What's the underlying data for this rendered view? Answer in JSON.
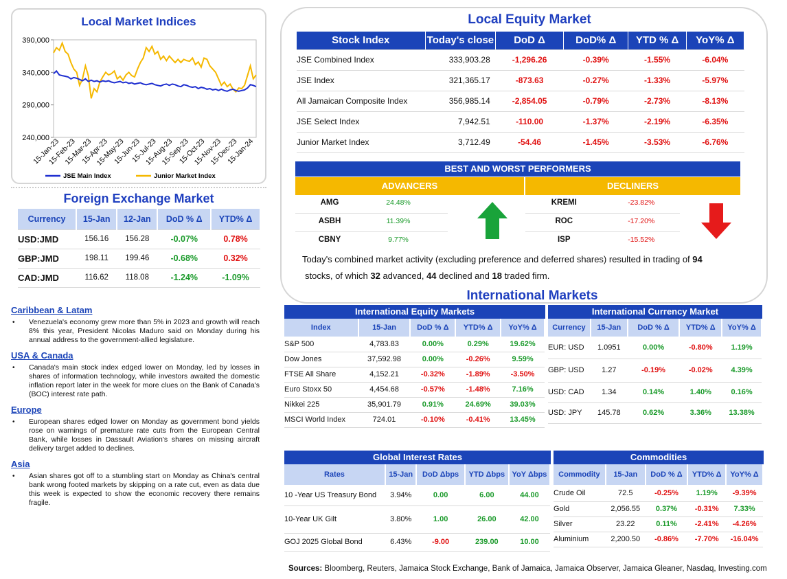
{
  "chart_title": "Local Market Indices",
  "chart_data": {
    "type": "line",
    "ylim": [
      240000,
      390000
    ],
    "yticks": [
      "390,000",
      "340,000",
      "290,000",
      "240,000"
    ],
    "xticks": [
      "15-Jan-23",
      "15-Feb-23",
      "15-Mar-23",
      "15-Apr-23",
      "15-May-23",
      "15-Jun-23",
      "15-Jul-23",
      "15-Aug-23",
      "15-Sep-23",
      "15-Oct-23",
      "15-Nov-23",
      "15-Dec-23",
      "15-Jan-24"
    ],
    "series": [
      {
        "name": "JSE Main Index",
        "color": "#1f2fd0",
        "values": [
          338000,
          342000,
          336000,
          335000,
          334000,
          333000,
          330000,
          332000,
          331000,
          329000,
          327000,
          330000,
          326000,
          328000,
          326000,
          327000,
          325000,
          327000,
          326000,
          327000,
          325000,
          324000,
          325000,
          326000,
          324000,
          325000,
          323000,
          324000,
          322000,
          323000,
          324000,
          322000,
          321000,
          322000,
          323000,
          321000,
          320000,
          319000,
          321000,
          322000,
          320000,
          322000,
          321000,
          319000,
          318000,
          321000,
          320000,
          318000,
          317000,
          318000,
          315000,
          317000,
          316000,
          314000,
          315000,
          313000,
          314000,
          312000,
          314000,
          312000,
          311000,
          313000,
          314000,
          312000,
          311000,
          312000,
          313000,
          316000,
          321000,
          320000,
          318000
        ]
      },
      {
        "name": "Junior Market Index",
        "color": "#f5b800",
        "values": [
          370000,
          378000,
          374000,
          385000,
          372000,
          368000,
          355000,
          345000,
          340000,
          320000,
          330000,
          350000,
          335000,
          300000,
          315000,
          310000,
          325000,
          333000,
          340000,
          336000,
          338000,
          342000,
          330000,
          334000,
          328000,
          336000,
          340000,
          335000,
          333000,
          345000,
          355000,
          362000,
          378000,
          372000,
          380000,
          368000,
          372000,
          360000,
          365000,
          358000,
          365000,
          360000,
          355000,
          360000,
          355000,
          360000,
          358000,
          357000,
          362000,
          352000,
          356000,
          348000,
          362000,
          360000,
          350000,
          345000,
          340000,
          330000,
          320000,
          325000,
          318000,
          322000,
          314000,
          310000,
          316000,
          315000,
          320000,
          335000,
          350000,
          330000,
          336000
        ]
      }
    ]
  },
  "fx": {
    "title": "Foreign Exchange Market",
    "headers": [
      "Currency",
      "15-Jan",
      "12-Jan",
      "DoD % Δ",
      "YTD% Δ"
    ],
    "rows": [
      {
        "cur": "USD:JMD",
        "a": "156.16",
        "b": "156.28",
        "dod": "-0.07%",
        "ytd": "0.78%",
        "dodc": "pos",
        "ytdc": "neg"
      },
      {
        "cur": "GBP:JMD",
        "a": "198.11",
        "b": "199.46",
        "dod": "-0.68%",
        "ytd": "0.32%",
        "dodc": "pos",
        "ytdc": "neg"
      },
      {
        "cur": "CAD:JMD",
        "a": "116.62",
        "b": "118.08",
        "dod": "-1.24%",
        "ytd": "-1.09%",
        "dodc": "pos",
        "ytdc": "pos"
      }
    ]
  },
  "news": [
    {
      "h": "Caribbean & Latam",
      "t": "Venezuela's economy grew more than 5% in 2023 and growth will reach 8% this year, President Nicolas Maduro said on Monday during his annual address to the government-allied legislature."
    },
    {
      "h": "USA & Canada",
      "t": "Canada's main stock index edged lower on Monday, led by losses in shares of information technology, while investors awaited the domestic inflation report later in the week for more clues on the Bank of Canada's (BOC) interest rate path."
    },
    {
      "h": "Europe",
      "t": "European shares edged lower on Monday as government bond yields rose on warnings of premature rate cuts from the European Central Bank, while losses in Dassault Aviation's shares on missing aircraft delivery target added to declines."
    },
    {
      "h": "Asia",
      "t": "Asian shares got off to a stumbling start on Monday as China's central bank wrong footed markets by skipping on a rate cut, even as data due this week is expected to show the economic recovery there remains fragile."
    }
  ],
  "equity": {
    "title": "Local Equity Market",
    "headers": [
      "Stock Index",
      "Today's close",
      "DoD  Δ",
      "DoD% Δ",
      "YTD % Δ",
      "YoY% Δ"
    ],
    "rows": [
      [
        "JSE Combined Index",
        "333,903.28",
        "-1,296.26",
        "-0.39%",
        "-1.55%",
        "-6.04%"
      ],
      [
        "JSE Index",
        "321,365.17",
        "-873.63",
        "-0.27%",
        "-1.33%",
        "-5.97%"
      ],
      [
        "All Jamaican Composite Index",
        "356,985.14",
        "-2,854.05",
        "-0.79%",
        "-2.73%",
        "-8.13%"
      ],
      [
        "JSE Select Index",
        "7,942.51",
        "-110.00",
        "-1.37%",
        "-2.19%",
        "-6.35%"
      ],
      [
        "Junior Market Index",
        "3,712.49",
        "-54.46",
        "-1.45%",
        "-3.53%",
        "-6.76%"
      ]
    ]
  },
  "performers": {
    "title": "BEST AND WORST PERFORMERS",
    "adv_label": "ADVANCERS",
    "dec_label": "DECLINERS",
    "advancers": [
      [
        "AMG",
        "24.48%"
      ],
      [
        "ASBH",
        "11.39%"
      ],
      [
        "CBNY",
        "9.77%"
      ]
    ],
    "decliners": [
      [
        "KREMI",
        "-23.82%"
      ],
      [
        "ROC",
        "-17.20%"
      ],
      [
        "ISP",
        "-15.52%"
      ]
    ]
  },
  "summary": {
    "pre": "Today's combined market activity (excluding preference and deferred shares) resulted in trading of ",
    "total": "94",
    "mid1": " stocks, of which ",
    "adv": "32",
    "mid2": " advanced, ",
    "dec": "44",
    "mid3": " declined and ",
    "firm": "18",
    "post": " traded firm."
  },
  "intl_title": "International Markets",
  "ieq": {
    "title": "International Equity Markets",
    "headers": [
      "Index",
      "15-Jan",
      "DoD % Δ",
      "YTD% Δ",
      "YoY% Δ"
    ],
    "rows": [
      [
        "S&P 500",
        "4,783.83",
        "0.00%",
        "0.29%",
        "19.62%",
        "p",
        "p",
        "p"
      ],
      [
        "Dow Jones",
        "37,592.98",
        "0.00%",
        "-0.26%",
        "9.59%",
        "p",
        "n",
        "p"
      ],
      [
        "FTSE All Share",
        "4,152.21",
        "-0.32%",
        "-1.89%",
        "-3.50%",
        "n",
        "n",
        "n"
      ],
      [
        "Euro Stoxx 50",
        "4,454.68",
        "-0.57%",
        "-1.48%",
        "7.16%",
        "n",
        "n",
        "p"
      ],
      [
        "Nikkei 225",
        "35,901.79",
        "0.91%",
        "24.69%",
        "39.03%",
        "p",
        "p",
        "p"
      ],
      [
        "MSCI World Index",
        "724.01",
        "-0.10%",
        "-0.41%",
        "13.45%",
        "n",
        "n",
        "p"
      ]
    ]
  },
  "icur": {
    "title": "International Currency Market",
    "headers": [
      "Currency",
      "15-Jan",
      "DoD % Δ",
      "YTD% Δ",
      "YoY% Δ"
    ],
    "rows": [
      [
        "EUR: USD",
        "1.0951",
        "0.00%",
        "-0.80%",
        "1.19%",
        "p",
        "n",
        "p"
      ],
      [
        "GBP: USD",
        "1.27",
        "-0.19%",
        "-0.02%",
        "4.39%",
        "n",
        "n",
        "p"
      ],
      [
        "USD: CAD",
        "1.34",
        "0.14%",
        "1.40%",
        "0.16%",
        "p",
        "p",
        "p"
      ],
      [
        "USD: JPY",
        "145.78",
        "0.62%",
        "3.36%",
        "13.38%",
        "p",
        "p",
        "p"
      ]
    ]
  },
  "rates": {
    "title": "Global Interest Rates",
    "headers": [
      "Rates",
      "15-Jan",
      "DoD Δbps",
      "YTD Δbps",
      "YoY Δbps"
    ],
    "rows": [
      [
        "10 -Year US Treasury Bond",
        "3.94%",
        "0.00",
        "6.00",
        "44.00",
        "p",
        "p",
        "p"
      ],
      [
        "10-Year UK Gilt",
        "3.80%",
        "1.00",
        "26.00",
        "42.00",
        "p",
        "p",
        "p"
      ],
      [
        "GOJ 2025 Global Bond",
        "6.43%",
        "-9.00",
        "239.00",
        "10.00",
        "n",
        "p",
        "p"
      ]
    ]
  },
  "comm": {
    "title": "Commodities",
    "headers": [
      "Commodity",
      "15-Jan",
      "DoD % Δ",
      "YTD% Δ",
      "YoY% Δ"
    ],
    "rows": [
      [
        "Crude Oil",
        "72.5",
        "-0.25%",
        "1.19%",
        "-9.39%",
        "n",
        "p",
        "n"
      ],
      [
        "Gold",
        "2,056.55",
        "0.37%",
        "-0.31%",
        "7.33%",
        "p",
        "n",
        "p"
      ],
      [
        "Silver",
        "23.22",
        "0.11%",
        "-2.41%",
        "-4.26%",
        "p",
        "n",
        "n"
      ],
      [
        "Aluminium",
        "2,200.50",
        "-0.86%",
        "-7.70%",
        "-16.04%",
        "n",
        "n",
        "n"
      ]
    ]
  },
  "sources_label": "Sources:",
  "sources": " Bloomberg, Reuters, Jamaica Stock Exchange, Bank of Jamaica, Jamaica Observer, Jamaica Gleaner, Nasdaq, Investing.com"
}
